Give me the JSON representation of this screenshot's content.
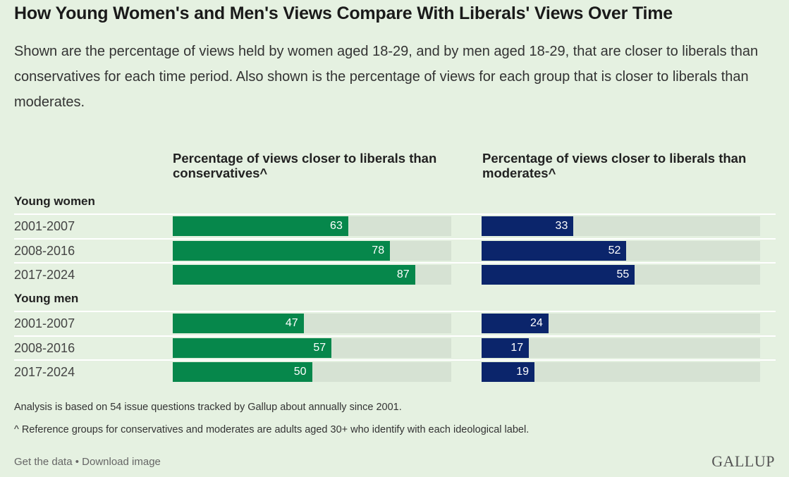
{
  "title": "How Young Women's and Men's Views Compare With Liberals' Views Over Time",
  "subtitle": "Shown are the percentage of views held by women aged 18-29, and by men aged 18-29, that are closer to liberals than conservatives for each time period. Also shown is the percentage of views for each group that is closer to liberals than moderates.",
  "colors": {
    "background": "#e5f1e1",
    "track": "#d6e2d3",
    "left_bar": "#06874b",
    "right_bar": "#0b256b"
  },
  "chart_data": {
    "type": "bar",
    "orientation": "horizontal",
    "xlim": [
      0,
      100
    ],
    "panels": [
      {
        "title": "Percentage of views closer to liberals than conservatives^",
        "color": "#06874b"
      },
      {
        "title": "Percentage of views closer to liberals than moderates^",
        "color": "#0b256b"
      }
    ],
    "groups": [
      {
        "name": "Young women",
        "rows": [
          {
            "period": "2001-2007",
            "values": [
              63,
              33
            ]
          },
          {
            "period": "2008-2016",
            "values": [
              78,
              52
            ]
          },
          {
            "period": "2017-2024",
            "values": [
              87,
              55
            ]
          }
        ]
      },
      {
        "name": "Young men",
        "rows": [
          {
            "period": "2001-2007",
            "values": [
              47,
              24
            ]
          },
          {
            "period": "2008-2016",
            "values": [
              57,
              17
            ]
          },
          {
            "period": "2017-2024",
            "values": [
              50,
              19
            ]
          }
        ]
      }
    ]
  },
  "notes": [
    "Analysis is based on 54 issue questions tracked by Gallup about annually since 2001.",
    "^ Reference groups for conservatives and moderates are adults aged 30+ who identify with each ideological label."
  ],
  "footer": {
    "get_data": "Get the data",
    "separator": " • ",
    "download": "Download image"
  },
  "brand": "GALLUP"
}
